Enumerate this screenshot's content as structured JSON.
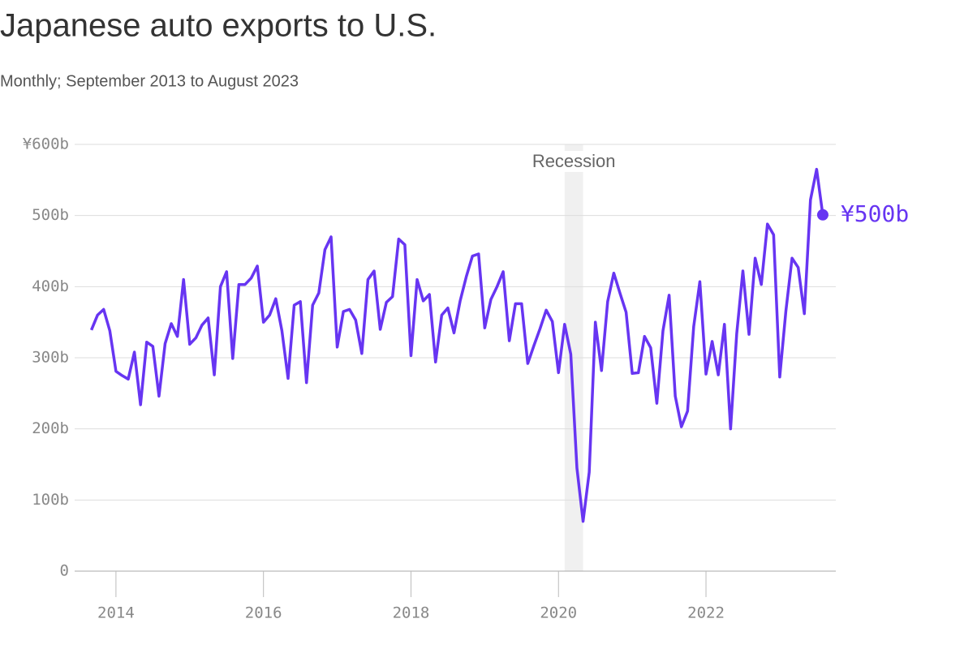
{
  "chart_data": {
    "type": "line",
    "title": "Japanese auto exports to U.S.",
    "subtitle": "Monthly; September 2013 to August 2023",
    "x": [
      "2013-09",
      "2013-10",
      "2013-11",
      "2013-12",
      "2014-01",
      "2014-02",
      "2014-03",
      "2014-04",
      "2014-05",
      "2014-06",
      "2014-07",
      "2014-08",
      "2014-09",
      "2014-10",
      "2014-11",
      "2014-12",
      "2015-01",
      "2015-02",
      "2015-03",
      "2015-04",
      "2015-05",
      "2015-06",
      "2015-07",
      "2015-08",
      "2015-09",
      "2015-10",
      "2015-11",
      "2015-12",
      "2016-01",
      "2016-02",
      "2016-03",
      "2016-04",
      "2016-05",
      "2016-06",
      "2016-07",
      "2016-08",
      "2016-09",
      "2016-10",
      "2016-11",
      "2016-12",
      "2017-01",
      "2017-02",
      "2017-03",
      "2017-04",
      "2017-05",
      "2017-06",
      "2017-07",
      "2017-08",
      "2017-09",
      "2017-10",
      "2017-11",
      "2017-12",
      "2018-01",
      "2018-02",
      "2018-03",
      "2018-04",
      "2018-05",
      "2018-06",
      "2018-07",
      "2018-08",
      "2018-09",
      "2018-10",
      "2018-11",
      "2018-12",
      "2019-01",
      "2019-02",
      "2019-03",
      "2019-04",
      "2019-05",
      "2019-06",
      "2019-07",
      "2019-08",
      "2019-09",
      "2019-10",
      "2019-11",
      "2019-12",
      "2020-01",
      "2020-02",
      "2020-03",
      "2020-04",
      "2020-05",
      "2020-06",
      "2020-07",
      "2020-08",
      "2020-09",
      "2020-10",
      "2020-11",
      "2020-12",
      "2021-01",
      "2021-02",
      "2021-03",
      "2021-04",
      "2021-05",
      "2021-06",
      "2021-07",
      "2021-08",
      "2021-09",
      "2021-10",
      "2021-11",
      "2021-12",
      "2022-01",
      "2022-02",
      "2022-03",
      "2022-04",
      "2022-05",
      "2022-06",
      "2022-07",
      "2022-08",
      "2022-09",
      "2022-10",
      "2022-11",
      "2022-12",
      "2023-01",
      "2023-02",
      "2023-03",
      "2023-04",
      "2023-05",
      "2023-06",
      "2023-07",
      "2023-08"
    ],
    "series": [
      {
        "color": "#6735f2",
        "values": [
          339,
          360,
          368,
          338,
          281,
          275,
          270,
          308,
          234,
          322,
          316,
          246,
          320,
          348,
          330,
          410,
          319,
          328,
          346,
          356,
          276,
          400,
          421,
          299,
          403,
          403,
          412,
          429,
          350,
          360,
          383,
          338,
          271,
          374,
          379,
          265,
          374,
          391,
          452,
          470,
          315,
          365,
          368,
          353,
          306,
          410,
          422,
          340,
          378,
          386,
          467,
          459,
          303,
          410,
          380,
          389,
          294,
          360,
          370,
          335,
          380,
          414,
          443,
          446,
          342,
          382,
          400,
          421,
          324,
          376,
          376,
          292,
          317,
          341,
          367,
          351,
          279,
          347,
          305,
          145,
          70,
          139,
          350,
          282,
          379,
          419,
          391,
          364,
          278,
          279,
          330,
          314,
          236,
          338,
          388,
          246,
          203,
          225,
          344,
          407,
          277,
          323,
          276,
          347,
          200,
          334,
          422,
          333,
          440,
          403,
          488,
          473,
          273,
          366,
          440,
          427,
          362,
          522,
          565,
          501
        ],
        "value_labels": [
          null,
          null,
          null,
          null,
          null,
          null,
          null,
          null,
          null,
          null,
          null,
          null,
          null,
          null,
          null,
          null,
          null,
          null,
          null,
          null,
          null,
          null,
          null,
          null,
          null,
          null,
          null,
          null,
          null,
          null,
          null,
          null,
          null,
          null,
          null,
          null,
          null,
          null,
          null,
          null,
          null,
          null,
          null,
          null,
          null,
          null,
          null,
          null,
          null,
          null,
          null,
          null,
          null,
          null,
          null,
          null,
          null,
          null,
          null,
          null,
          null,
          null,
          null,
          null,
          null,
          null,
          null,
          null,
          null,
          null,
          null,
          null,
          null,
          null,
          null,
          null,
          null,
          null,
          null,
          null,
          null,
          null,
          null,
          null,
          null,
          null,
          null,
          null,
          null,
          null,
          null,
          null,
          null,
          null,
          null,
          null,
          null,
          null,
          null,
          null,
          null,
          null,
          null,
          null,
          null,
          null,
          null,
          null,
          null,
          null,
          null,
          null,
          null,
          null,
          null,
          null,
          null,
          null,
          null,
          "¥500b"
        ]
      }
    ],
    "xlim": [
      2013.44,
      2023.76
    ],
    "xticks": [
      2014,
      2016,
      2018,
      2020,
      2022
    ],
    "ylim": [
      0,
      600
    ],
    "yticks": [
      0,
      {
        "value": 100,
        "label": "100b"
      },
      {
        "value": 200,
        "label": "200b"
      },
      {
        "value": 300,
        "label": "300b"
      },
      {
        "value": 400,
        "label": "400b"
      },
      {
        "value": 500,
        "label": "500b"
      },
      {
        "value": 600,
        "label": "¥600b"
      }
    ],
    "grid": true,
    "annotations": [
      {
        "label": "Recession",
        "start": "2020-02",
        "end": "2020-04"
      }
    ]
  }
}
